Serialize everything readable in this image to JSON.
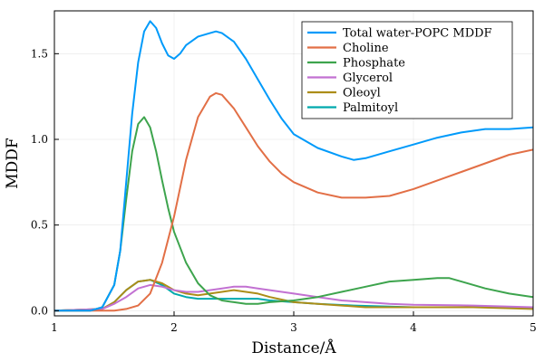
{
  "chart_data": {
    "type": "line",
    "title": "",
    "xlabel": "Distance/Å",
    "ylabel": "MDDF",
    "xlim": [
      1,
      5
    ],
    "ylim": [
      -0.03,
      1.75
    ],
    "xticks": [
      1,
      2,
      3,
      4,
      5
    ],
    "xtick_labels": [
      "1",
      "2",
      "3",
      "4",
      "5"
    ],
    "yticks": [
      0.0,
      0.5,
      1.0,
      1.5
    ],
    "ytick_labels": [
      "0.0",
      "0.5",
      "1.0",
      "1.5"
    ],
    "grid": true,
    "legend_position": "top-right",
    "series": [
      {
        "name": "Total water-POPC MDDF",
        "color": "#009AFA",
        "x": [
          1.0,
          1.3,
          1.4,
          1.5,
          1.55,
          1.6,
          1.65,
          1.7,
          1.75,
          1.8,
          1.85,
          1.9,
          1.95,
          2.0,
          2.05,
          2.1,
          2.2,
          2.3,
          2.35,
          2.4,
          2.5,
          2.6,
          2.7,
          2.8,
          2.9,
          3.0,
          3.2,
          3.4,
          3.5,
          3.6,
          3.8,
          4.0,
          4.2,
          4.4,
          4.6,
          4.8,
          5.0
        ],
        "y": [
          0.0,
          0.0,
          0.02,
          0.15,
          0.35,
          0.75,
          1.15,
          1.45,
          1.63,
          1.69,
          1.65,
          1.56,
          1.49,
          1.47,
          1.5,
          1.55,
          1.6,
          1.62,
          1.63,
          1.62,
          1.57,
          1.47,
          1.35,
          1.23,
          1.12,
          1.03,
          0.95,
          0.9,
          0.88,
          0.89,
          0.93,
          0.97,
          1.01,
          1.04,
          1.06,
          1.06,
          1.07
        ]
      },
      {
        "name": "Choline",
        "color": "#E26F46",
        "x": [
          1.0,
          1.5,
          1.6,
          1.7,
          1.8,
          1.9,
          2.0,
          2.1,
          2.2,
          2.3,
          2.35,
          2.4,
          2.5,
          2.6,
          2.7,
          2.8,
          2.9,
          3.0,
          3.2,
          3.4,
          3.5,
          3.6,
          3.8,
          4.0,
          4.2,
          4.4,
          4.6,
          4.8,
          5.0
        ],
        "y": [
          0.0,
          0.0,
          0.01,
          0.03,
          0.1,
          0.28,
          0.55,
          0.88,
          1.13,
          1.25,
          1.27,
          1.26,
          1.18,
          1.07,
          0.96,
          0.87,
          0.8,
          0.75,
          0.69,
          0.66,
          0.66,
          0.66,
          0.67,
          0.71,
          0.76,
          0.81,
          0.86,
          0.91,
          0.94
        ]
      },
      {
        "name": "Phosphate",
        "color": "#3DA44D",
        "x": [
          1.0,
          1.3,
          1.4,
          1.5,
          1.55,
          1.6,
          1.65,
          1.7,
          1.75,
          1.8,
          1.85,
          1.9,
          1.95,
          2.0,
          2.1,
          2.2,
          2.3,
          2.4,
          2.5,
          2.6,
          2.7,
          2.8,
          3.0,
          3.2,
          3.4,
          3.6,
          3.8,
          4.0,
          4.2,
          4.3,
          4.4,
          4.6,
          4.8,
          5.0
        ],
        "y": [
          0.0,
          0.0,
          0.02,
          0.15,
          0.35,
          0.65,
          0.93,
          1.09,
          1.13,
          1.07,
          0.93,
          0.76,
          0.6,
          0.46,
          0.28,
          0.16,
          0.09,
          0.06,
          0.05,
          0.04,
          0.04,
          0.05,
          0.06,
          0.08,
          0.11,
          0.14,
          0.17,
          0.18,
          0.19,
          0.19,
          0.17,
          0.13,
          0.1,
          0.08
        ]
      },
      {
        "name": "Glycerol",
        "color": "#C271D2",
        "x": [
          1.0,
          1.4,
          1.5,
          1.6,
          1.7,
          1.8,
          1.9,
          2.0,
          2.1,
          2.2,
          2.3,
          2.4,
          2.5,
          2.6,
          2.7,
          2.8,
          3.0,
          3.2,
          3.4,
          3.6,
          3.8,
          4.0,
          4.5,
          5.0
        ],
        "y": [
          0.0,
          0.01,
          0.04,
          0.08,
          0.13,
          0.15,
          0.14,
          0.12,
          0.11,
          0.11,
          0.12,
          0.13,
          0.14,
          0.14,
          0.13,
          0.12,
          0.1,
          0.08,
          0.06,
          0.05,
          0.04,
          0.035,
          0.03,
          0.02
        ]
      },
      {
        "name": "Oleoyl",
        "color": "#AC8D18",
        "x": [
          1.0,
          1.4,
          1.5,
          1.6,
          1.7,
          1.8,
          1.9,
          2.0,
          2.1,
          2.2,
          2.3,
          2.4,
          2.5,
          2.6,
          2.7,
          2.8,
          3.0,
          3.2,
          3.4,
          3.6,
          4.0,
          4.5,
          5.0
        ],
        "y": [
          0.0,
          0.01,
          0.05,
          0.12,
          0.17,
          0.18,
          0.16,
          0.12,
          0.1,
          0.09,
          0.1,
          0.11,
          0.12,
          0.11,
          0.1,
          0.08,
          0.05,
          0.04,
          0.03,
          0.02,
          0.02,
          0.02,
          0.01
        ]
      },
      {
        "name": "Palmitoyl",
        "color": "#00A9AD",
        "x": [
          1.0,
          1.4,
          1.5,
          1.6,
          1.7,
          1.8,
          1.9,
          2.0,
          2.1,
          2.2,
          2.3,
          2.4,
          2.5,
          2.6,
          2.7,
          2.8,
          3.0,
          3.2,
          3.5,
          4.0,
          4.5,
          5.0
        ],
        "y": [
          0.0,
          0.01,
          0.05,
          0.12,
          0.17,
          0.18,
          0.15,
          0.1,
          0.08,
          0.07,
          0.07,
          0.07,
          0.07,
          0.07,
          0.07,
          0.06,
          0.05,
          0.04,
          0.03,
          0.02,
          0.02,
          0.02
        ]
      }
    ]
  }
}
